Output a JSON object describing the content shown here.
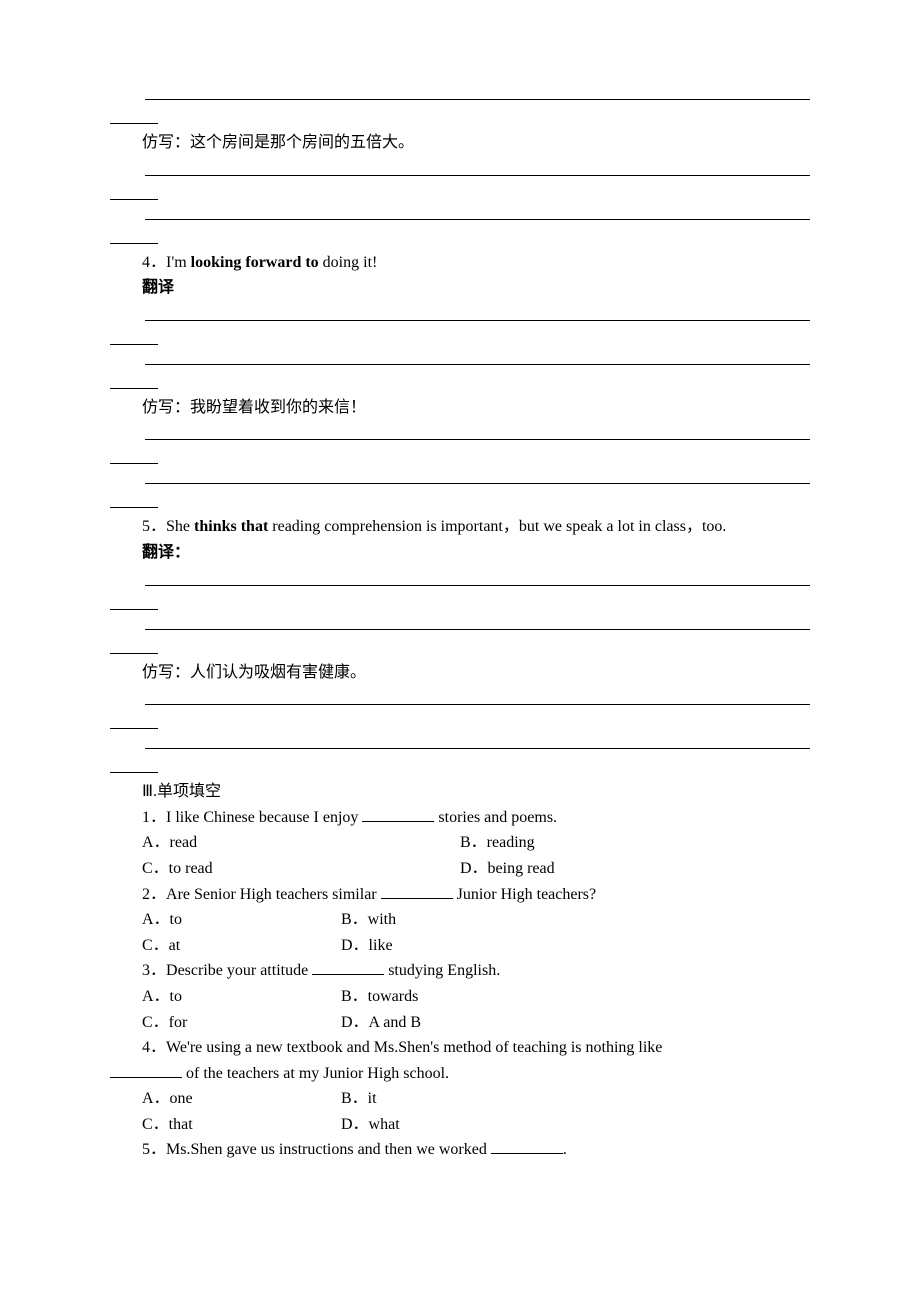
{
  "font": {
    "family": "Times New Roman / SimSun",
    "size_pt": 12,
    "color": "#000000"
  },
  "background_color": "#ffffff",
  "blocks": {
    "b1": {
      "prompt": "仿写：这个房间是那个房间的五倍大。"
    },
    "q4": {
      "number": "4．",
      "sentence_pre": "I'm ",
      "sentence_bold": "looking forward to",
      "sentence_post": " doing it!",
      "translate_label": "翻译",
      "imitate_label": "仿写：我盼望着收到你的来信！"
    },
    "q5": {
      "number": "5．",
      "sentence_pre": "She ",
      "sentence_bold": "thinks that",
      "sentence_post": " reading comprehension is important，but we speak a lot in class，too.",
      "translate_label": "翻译：",
      "imitate_label": "仿写：人们认为吸烟有害健康。"
    },
    "section3": {
      "heading": "Ⅲ.单项填空",
      "items": [
        {
          "num": "1．",
          "stem_pre": "I like Chinese because I enjoy ",
          "stem_post": " stories and poems.",
          "opts": {
            "A": "A．read",
            "B": "B．reading",
            "C": "C．to read",
            "D": "D．being read"
          },
          "layout": "2col"
        },
        {
          "num": "2．",
          "stem_pre": "Are Senior High teachers similar ",
          "stem_post": " Junior High teachers?",
          "opts": {
            "A": "A．to",
            "B": "B．with",
            "C": "C．at",
            "D": "D．like"
          },
          "layout": "2col-narrow"
        },
        {
          "num": "3．",
          "stem_pre": "Describe your attitude ",
          "stem_post": " studying English.",
          "opts": {
            "A": "A．to",
            "B": "B．towards",
            "C": "C．for",
            "D": "D．A and B"
          },
          "layout": "2col-narrow"
        },
        {
          "num": "4．",
          "stem_pre": "We're using a new textbook and Ms.Shen's method of teaching is nothing like ",
          "stem_post2": " of the teachers at my Junior High school.",
          "opts": {
            "A": "A．one",
            "B": "B．it",
            "C": "C．that",
            "D": "D．what"
          },
          "layout": "2col-narrow"
        },
        {
          "num": "5．",
          "stem_pre": "Ms.Shen gave us instructions and then we worked ",
          "stem_post": "."
        }
      ]
    }
  }
}
